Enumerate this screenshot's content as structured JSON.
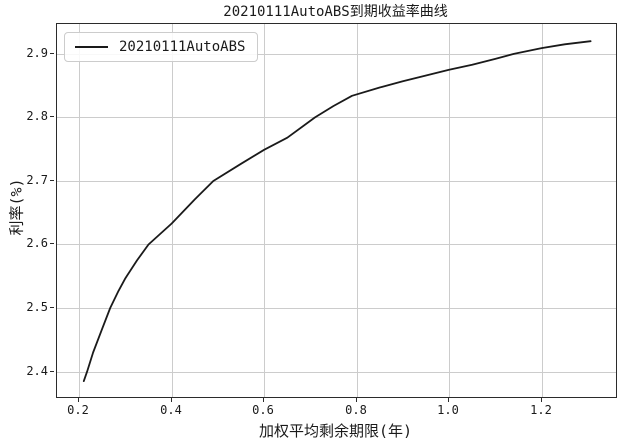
{
  "chart_data": {
    "type": "line",
    "title": "20210111AutoABS到期收益率曲线",
    "xlabel": "加权平均剩余期限(年)",
    "ylabel": "利率(%)",
    "legend": {
      "label": "20210111AutoABS",
      "position": "upper left"
    },
    "grid": true,
    "xlim": [
      0.152,
      1.361
    ],
    "ylim": [
      2.36,
      2.947
    ],
    "x_ticks": [
      0.2,
      0.4,
      0.6,
      0.8,
      1.0,
      1.2
    ],
    "x_tick_labels": [
      "0.2",
      "0.4",
      "0.6",
      "0.8",
      "1.0",
      "1.2"
    ],
    "y_ticks": [
      2.4,
      2.5,
      2.6,
      2.7,
      2.8,
      2.9
    ],
    "y_tick_labels": [
      "2.4",
      "2.5",
      "2.6",
      "2.7",
      "2.8",
      "2.9"
    ],
    "series": [
      {
        "name": "20210111AutoABS",
        "color": "#1a1a1a",
        "x": [
          0.21,
          0.217,
          0.23,
          0.25,
          0.267,
          0.285,
          0.3,
          0.325,
          0.35,
          0.4,
          0.45,
          0.49,
          0.55,
          0.6,
          0.65,
          0.71,
          0.75,
          0.79,
          0.85,
          0.9,
          0.95,
          1.0,
          1.05,
          1.1,
          1.14,
          1.2,
          1.25,
          1.306
        ],
        "y": [
          2.385,
          2.4,
          2.43,
          2.468,
          2.5,
          2.527,
          2.547,
          2.575,
          2.6,
          2.633,
          2.671,
          2.7,
          2.727,
          2.749,
          2.768,
          2.8,
          2.818,
          2.834,
          2.847,
          2.857,
          2.866,
          2.875,
          2.883,
          2.892,
          2.9,
          2.909,
          2.915,
          2.92
        ]
      }
    ],
    "colors": {
      "line": "#1a1a1a",
      "grid": "#cccccc",
      "spine": "#2b2b2b",
      "text": "#1a1a1a",
      "background": "#ffffff"
    }
  }
}
